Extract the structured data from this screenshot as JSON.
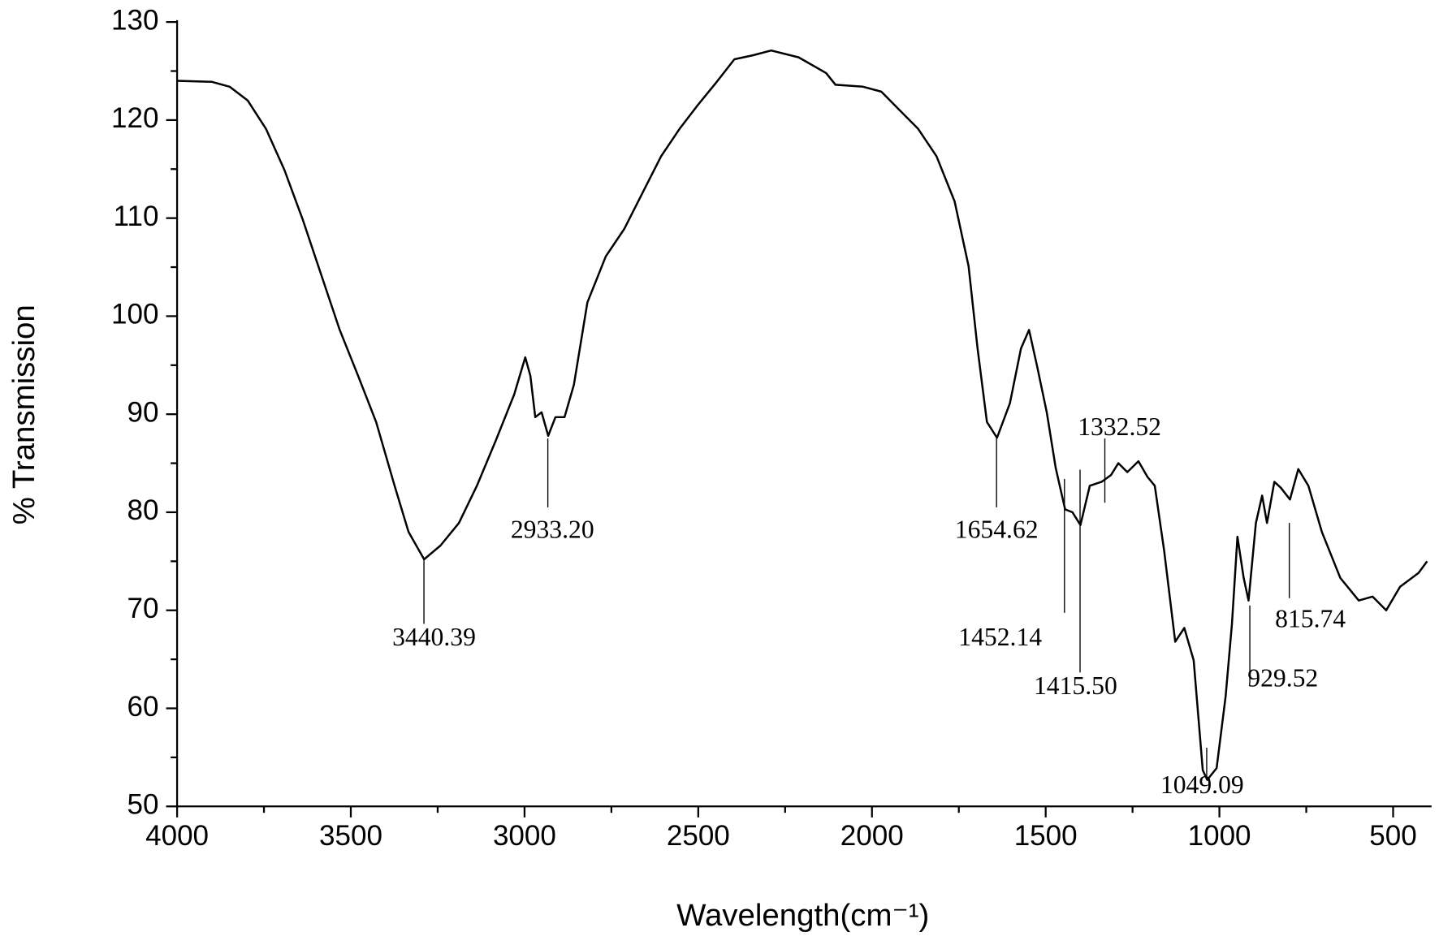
{
  "chart_data": {
    "type": "line",
    "x_label": "Wavelength(cm⁻¹)",
    "y_label": "% Transmission",
    "color": "#000000",
    "x": [
      4000,
      3900,
      3849,
      3797,
      3744,
      3691,
      3638,
      3585,
      3532,
      3479,
      3427,
      3374,
      3334,
      3289,
      3242,
      3189,
      3137,
      3083,
      3030,
      2998,
      2983,
      2969,
      2951,
      2932,
      2911,
      2885,
      2858,
      2819,
      2766,
      2713,
      2660,
      2607,
      2554,
      2502,
      2449,
      2396,
      2343,
      2290,
      2211,
      2132,
      2105,
      2026,
      1973,
      1920,
      1867,
      1814,
      1762,
      1722,
      1696,
      1669,
      1640,
      1603,
      1571,
      1548,
      1524,
      1497,
      1471,
      1444,
      1423,
      1400,
      1373,
      1339,
      1312,
      1291,
      1265,
      1233,
      1207,
      1186,
      1159,
      1127,
      1101,
      1074,
      1048,
      1035,
      1008,
      982,
      964,
      948,
      930,
      916,
      895,
      877,
      863,
      842,
      823,
      797,
      773,
      744,
      705,
      652,
      599,
      559,
      520,
      480,
      427,
      402
    ],
    "values": [
      124,
      123.9,
      123.4,
      122,
      119.1,
      114.9,
      109.8,
      104.2,
      98.6,
      93.9,
      89.2,
      82.7,
      78,
      75.2,
      76.6,
      78.9,
      82.7,
      87.3,
      92,
      95.8,
      93.9,
      89.7,
      90.2,
      87.8,
      89.7,
      89.7,
      93,
      101.4,
      106.1,
      108.9,
      112.6,
      116.3,
      119.1,
      121.5,
      123.8,
      126.2,
      126.6,
      127.1,
      126.4,
      124.8,
      123.6,
      123.4,
      122.9,
      121,
      119.1,
      116.3,
      111.7,
      105.1,
      96.7,
      89.2,
      87.6,
      91.1,
      96.7,
      98.6,
      94.8,
      90.2,
      84.5,
      80.3,
      80,
      78.7,
      82.7,
      83.1,
      83.8,
      85,
      84.1,
      85.2,
      83.6,
      82.7,
      76.1,
      66.8,
      68.2,
      64.9,
      53.7,
      52.7,
      53.9,
      61.2,
      68.6,
      77.5,
      73.3,
      71,
      78.9,
      81.7,
      78.9,
      83.1,
      82.5,
      81.3,
      84.4,
      82.7,
      78,
      73.3,
      71,
      71.4,
      70,
      72.4,
      73.8,
      75
    ],
    "xlim": [
      4000,
      400
    ],
    "ylim": [
      50,
      130
    ],
    "xticks": [
      4000,
      3500,
      3000,
      2500,
      2000,
      1500,
      1000,
      500
    ],
    "xminorticks": [
      3750,
      3250,
      2750,
      2250,
      1750,
      1250,
      750
    ],
    "yticks": [
      50,
      60,
      70,
      80,
      90,
      100,
      110,
      120,
      130
    ],
    "yminorticks": [
      55,
      65,
      75,
      85,
      95,
      105,
      115,
      125
    ],
    "annotations": [
      "3440.39",
      "2933.20",
      "1654.62",
      "1452.14",
      "1415.50",
      "1332.52",
      "1049.09",
      "929.52",
      "815.74"
    ]
  }
}
